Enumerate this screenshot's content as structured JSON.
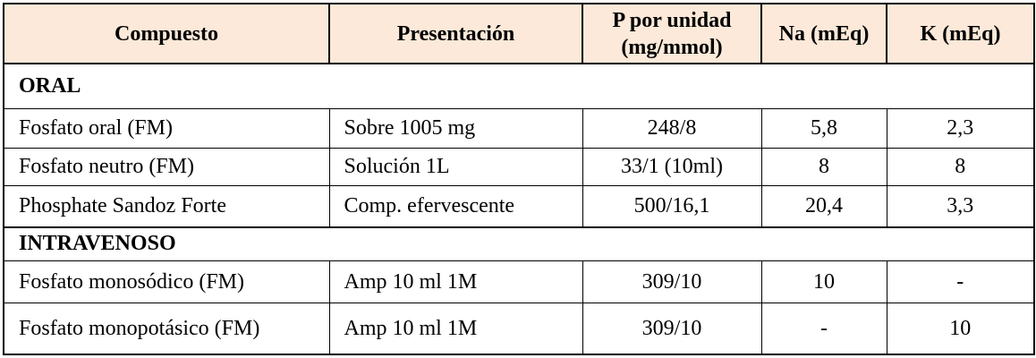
{
  "table": {
    "headers": {
      "compuesto": "Compuesto",
      "presentacion": "Presentación",
      "p_line1": "P por unidad",
      "p_line2": "(mg/mmol)",
      "na": "Na (mEq)",
      "k": "K (mEq)"
    },
    "oral": {
      "label": "ORAL",
      "rows": [
        {
          "compuesto": "Fosfato oral (FM)",
          "presentacion": "Sobre 1005 mg",
          "p": "248/8",
          "na": "5,8",
          "k": "2,3"
        },
        {
          "compuesto": "Fosfato neutro (FM)",
          "presentacion": "Solución 1L",
          "p": "33/1 (10ml)",
          "na": "8",
          "k": "8"
        },
        {
          "compuesto": "Phosphate Sandoz Forte",
          "presentacion": "Comp. efervescente",
          "p": "500/16,1",
          "na": "20,4",
          "k": "3,3"
        }
      ]
    },
    "intravenoso": {
      "label": "INTRAVENOSO",
      "rows": [
        {
          "compuesto": "Fosfato monosódico (FM)",
          "presentacion": "Amp 10 ml 1M",
          "p": "309/10",
          "na": "10",
          "k": "-"
        },
        {
          "compuesto": "Fosfato monopotásico (FM)",
          "presentacion": "Amp 10 ml 1M",
          "p": "309/10",
          "na": "-",
          "k": "10"
        }
      ]
    },
    "colors": {
      "header_bg": "#fde9d9",
      "border": "#000000"
    }
  }
}
